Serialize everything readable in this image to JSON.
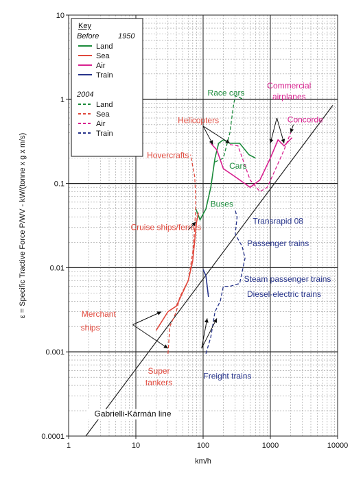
{
  "chart_data": {
    "type": "line",
    "x_scale": "log",
    "y_scale": "log",
    "xlim": [
      1,
      10000
    ],
    "ylim": [
      0.0001,
      10
    ],
    "xlabel": "km/h",
    "ylabel": "ε = Specific Tractive Force P/WV - kW/(tonne x g x m/s)",
    "x_ticks": [
      "1",
      "10",
      "100",
      "1000",
      "10000"
    ],
    "y_ticks": [
      "0.0001",
      "0.001",
      "0.01",
      "0.1",
      "1",
      "10"
    ],
    "grid": true,
    "legend": {
      "placement": "top-left",
      "title": "Key",
      "groups": [
        {
          "heading": "Before",
          "heading_year": "1950",
          "dash": "solid",
          "entries": [
            {
              "label": "Land",
              "color": "#1a8a3a"
            },
            {
              "label": "Sea",
              "color": "#e0483c"
            },
            {
              "label": "Air",
              "color": "#d8208f"
            },
            {
              "label": "Train",
              "color": "#27348b"
            }
          ]
        },
        {
          "heading": "2004",
          "heading_year": "",
          "dash": "dashed",
          "entries": [
            {
              "label": "Land",
              "color": "#1a8a3a"
            },
            {
              "label": "Sea",
              "color": "#e0483c"
            },
            {
              "label": "Air",
              "color": "#d8208f"
            },
            {
              "label": "Train",
              "color": "#27348b"
            }
          ]
        }
      ]
    },
    "reference_line": {
      "label": "Gabrielli-Kármán line",
      "points": [
        [
          1.8,
          0.0001
        ],
        [
          8500,
          0.85
        ]
      ]
    },
    "series": [
      {
        "group": "Before 1950",
        "category": "Land",
        "color": "#1a8a3a",
        "dash": "solid",
        "points": [
          [
            78,
            0.05
          ],
          [
            90,
            0.037
          ],
          [
            110,
            0.05
          ],
          [
            130,
            0.09
          ],
          [
            150,
            0.2
          ],
          [
            170,
            0.3
          ],
          [
            200,
            0.33
          ],
          [
            250,
            0.3
          ],
          [
            350,
            0.3
          ],
          [
            480,
            0.22
          ],
          [
            600,
            0.2
          ]
        ]
      },
      {
        "group": "2004",
        "category": "Land",
        "color": "#1a8a3a",
        "dash": "dashed",
        "points": [
          [
            150,
            0.18
          ],
          [
            200,
            0.2
          ],
          [
            250,
            0.4
          ],
          [
            280,
            0.8
          ],
          [
            300,
            1.1
          ],
          [
            400,
            1.0
          ]
        ]
      },
      {
        "group": "Before 1950",
        "category": "Sea",
        "color": "#e0483c",
        "dash": "solid",
        "points": [
          [
            20,
            0.0018
          ],
          [
            30,
            0.003
          ],
          [
            40,
            0.0035
          ],
          [
            60,
            0.007
          ],
          [
            70,
            0.012
          ],
          [
            80,
            0.035
          ],
          [
            85,
            0.045
          ]
        ]
      },
      {
        "group": "2004",
        "category": "Sea",
        "color": "#e0483c",
        "dash": "dashed",
        "points": [
          [
            30,
            0.00095
          ],
          [
            32,
            0.002
          ],
          [
            40,
            0.003
          ],
          [
            45,
            0.0045
          ],
          [
            60,
            0.007
          ],
          [
            70,
            0.015
          ],
          [
            75,
            0.03
          ],
          [
            78,
            0.06
          ],
          [
            75,
            0.12
          ],
          [
            65,
            0.22
          ]
        ]
      },
      {
        "group": "Before 1950",
        "category": "Air",
        "color": "#d8208f",
        "dash": "solid",
        "points": [
          [
            130,
            0.3
          ],
          [
            160,
            0.25
          ],
          [
            200,
            0.15
          ],
          [
            300,
            0.12
          ],
          [
            500,
            0.09
          ],
          [
            700,
            0.11
          ],
          [
            1000,
            0.2
          ],
          [
            1300,
            0.33
          ],
          [
            1600,
            0.28
          ],
          [
            2100,
            0.35
          ]
        ]
      },
      {
        "group": "2004",
        "category": "Air",
        "color": "#d8208f",
        "dash": "dashed",
        "points": [
          [
            250,
            0.29
          ],
          [
            330,
            0.28
          ],
          [
            500,
            0.11
          ],
          [
            700,
            0.08
          ],
          [
            900,
            0.09
          ],
          [
            1200,
            0.15
          ],
          [
            1600,
            0.25
          ],
          [
            2000,
            0.4
          ]
        ]
      },
      {
        "group": "Before 1950",
        "category": "Train",
        "color": "#27348b",
        "dash": "solid",
        "points": [
          [
            100,
            0.0095
          ],
          [
            110,
            0.008
          ],
          [
            120,
            0.0045
          ]
        ]
      },
      {
        "group": "2004",
        "category": "Train",
        "color": "#27348b",
        "dash": "dashed",
        "points": [
          [
            110,
            0.00095
          ],
          [
            130,
            0.0015
          ],
          [
            150,
            0.003
          ],
          [
            180,
            0.004
          ],
          [
            200,
            0.006
          ],
          [
            250,
            0.006
          ],
          [
            350,
            0.0065
          ],
          [
            420,
            0.013
          ],
          [
            380,
            0.018
          ],
          [
            300,
            0.025
          ],
          [
            320,
            0.04
          ],
          [
            300,
            0.048
          ]
        ]
      }
    ],
    "annotations": [
      {
        "text": "Race cars",
        "color": "#1a8a3a",
        "x": 220,
        "y": 1.1
      },
      {
        "text": "Commercial",
        "color": "#d8208f",
        "x": 1900,
        "y": 1.35
      },
      {
        "text": "airplanes",
        "color": "#d8208f",
        "x": 1900,
        "y": 1.0
      },
      {
        "text": "Helicopters",
        "color": "#e0483c",
        "x": 85,
        "y": 0.52
      },
      {
        "text": "Concorde",
        "color": "#d8208f",
        "x": 3300,
        "y": 0.53
      },
      {
        "text": "Hovercrafts",
        "color": "#e0483c",
        "x": 30,
        "y": 0.2
      },
      {
        "text": "Cars",
        "color": "#1a8a3a",
        "x": 330,
        "y": 0.15
      },
      {
        "text": "Buses",
        "color": "#1a8a3a",
        "x": 190,
        "y": 0.053
      },
      {
        "text": "Transrapid 08",
        "color": "#27348b",
        "x": 1300,
        "y": 0.033
      },
      {
        "text": "Cruise ships/ferries",
        "color": "#e0483c",
        "x": 28,
        "y": 0.028
      },
      {
        "text": "Passenger trains",
        "color": "#27348b",
        "x": 1300,
        "y": 0.018
      },
      {
        "text": "Steam passenger trains",
        "color": "#27348b",
        "x": 1800,
        "y": 0.0068
      },
      {
        "text": "Diesel-electric trains",
        "color": "#27348b",
        "x": 1600,
        "y": 0.0045
      },
      {
        "text": "Merchant",
        "color": "#e0483c",
        "x": 2.8,
        "y": 0.0026
      },
      {
        "text": "ships",
        "color": "#e0483c",
        "x": 2.1,
        "y": 0.0018
      },
      {
        "text": "Super",
        "color": "#e0483c",
        "x": 22,
        "y": 0.00055
      },
      {
        "text": "tankers",
        "color": "#e0483c",
        "x": 22,
        "y": 0.0004
      },
      {
        "text": "Freight trains",
        "color": "#27348b",
        "x": 230,
        "y": 0.00048
      },
      {
        "text": "Gabrielli-Kármán line",
        "color": "#111111",
        "x": 9,
        "y": 0.00017
      }
    ],
    "arrows": [
      {
        "color": "#111111",
        "from": [
          100,
          0.48
        ],
        "to": [
          140,
          0.29
        ]
      },
      {
        "color": "#111111",
        "from": [
          100,
          0.48
        ],
        "to": [
          250,
          0.3
        ]
      },
      {
        "color": "#111111",
        "from": [
          1250,
          0.6
        ],
        "to": [
          1000,
          0.3
        ]
      },
      {
        "color": "#111111",
        "from": [
          1250,
          0.6
        ],
        "to": [
          1600,
          0.3
        ]
      },
      {
        "color": "#111111",
        "from": [
          2200,
          0.5
        ],
        "to": [
          2000,
          0.4
        ]
      },
      {
        "color": "#111111",
        "from": [
          60,
          0.028
        ],
        "to": [
          78,
          0.035
        ]
      },
      {
        "color": "#111111",
        "from": [
          9,
          0.0021
        ],
        "to": [
          24,
          0.003
        ]
      },
      {
        "color": "#111111",
        "from": [
          9,
          0.0021
        ],
        "to": [
          30,
          0.0011
        ]
      },
      {
        "color": "#111111",
        "from": [
          95,
          0.0011
        ],
        "to": [
          115,
          0.0025
        ]
      },
      {
        "color": "#111111",
        "from": [
          95,
          0.0011
        ],
        "to": [
          160,
          0.0025
        ]
      }
    ]
  }
}
